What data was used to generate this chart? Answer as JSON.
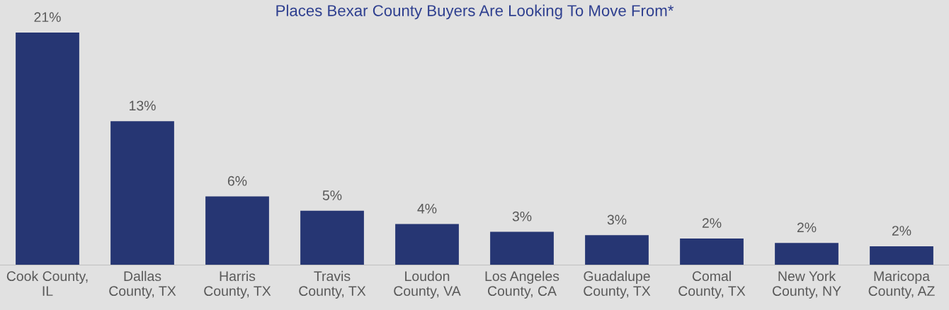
{
  "chart_data": {
    "type": "bar",
    "title": "Places Bexar County Buyers Are Looking To Move From*",
    "categories": [
      "Cook County,\nIL",
      "Dallas\nCounty, TX",
      "Harris\nCounty, TX",
      "Travis\nCounty, TX",
      "Loudon\nCounty, VA",
      "Los Angeles\nCounty, CA",
      "Guadalupe\nCounty, TX",
      "Comal\nCounty, TX",
      "New York\nCounty, NY",
      "Maricopa\nCounty, AZ"
    ],
    "values": [
      21,
      13,
      6.2,
      4.9,
      3.7,
      3.0,
      2.7,
      2.4,
      2.0,
      1.7
    ],
    "value_labels": [
      "21%",
      "13%",
      "6%",
      "5%",
      "4%",
      "3%",
      "3%",
      "2%",
      "2%",
      "2%"
    ],
    "color": "#263673"
  }
}
